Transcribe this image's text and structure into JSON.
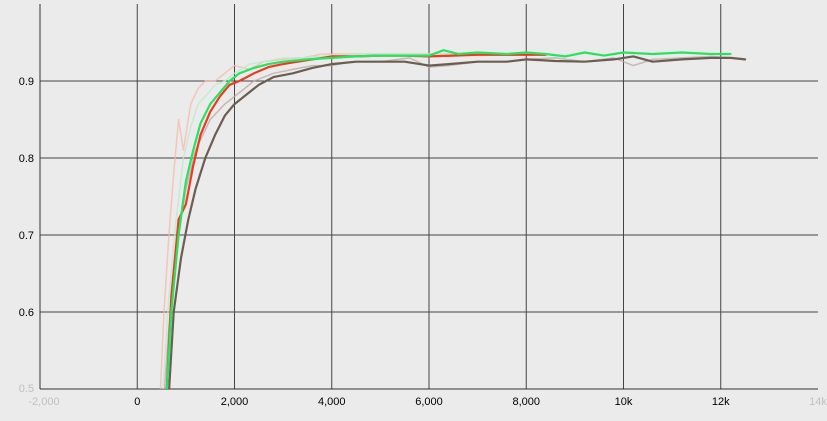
{
  "chart_data": {
    "type": "line",
    "title": "",
    "xlabel": "",
    "ylabel": "",
    "xlim": [
      -2000,
      14000
    ],
    "ylim": [
      0.5,
      1.0
    ],
    "grid": true,
    "x_ticks": [
      {
        "value": -2000,
        "label": "-2,000",
        "faded": true
      },
      {
        "value": 0,
        "label": "0",
        "faded": false
      },
      {
        "value": 2000,
        "label": "2,000",
        "faded": false
      },
      {
        "value": 4000,
        "label": "4,000",
        "faded": false
      },
      {
        "value": 6000,
        "label": "6,000",
        "faded": false
      },
      {
        "value": 8000,
        "label": "8,000",
        "faded": false
      },
      {
        "value": 10000,
        "label": "10k",
        "faded": false
      },
      {
        "value": 12000,
        "label": "12k",
        "faded": false
      },
      {
        "value": 14000,
        "label": "14k",
        "faded": true
      }
    ],
    "y_ticks": [
      {
        "value": 0.5,
        "label": "0.5",
        "faded": true
      },
      {
        "value": 0.6,
        "label": "0.6",
        "faded": false
      },
      {
        "value": 0.7,
        "label": "0.7",
        "faded": false
      },
      {
        "value": 0.8,
        "label": "0.8",
        "faded": false
      },
      {
        "value": 0.9,
        "label": "0.9",
        "faded": false
      }
    ],
    "series": [
      {
        "color": "#b5a9a3",
        "width": 1.5,
        "opacity": 0.75,
        "x": [
          550,
          650,
          800,
          1000,
          1200,
          1500,
          1800,
          2100,
          2400,
          2800,
          3200,
          3600,
          4000,
          4400,
          5000,
          5600,
          6000,
          6400,
          7000,
          7600,
          8000,
          8600,
          9200,
          9800,
          10200,
          10600,
          11200,
          11800,
          12200,
          12500
        ],
        "y": [
          0.49,
          0.58,
          0.68,
          0.76,
          0.81,
          0.85,
          0.87,
          0.885,
          0.9,
          0.91,
          0.915,
          0.92,
          0.92,
          0.925,
          0.925,
          0.93,
          0.918,
          0.92,
          0.925,
          0.925,
          0.928,
          0.93,
          0.925,
          0.93,
          0.92,
          0.928,
          0.93,
          0.932,
          0.93,
          0.928
        ]
      },
      {
        "color": "#6d5c53",
        "width": 2.2,
        "opacity": 1,
        "x": [
          650,
          750,
          900,
          1050,
          1200,
          1400,
          1600,
          1800,
          2000,
          2200,
          2500,
          2800,
          3200,
          3600,
          4000,
          4500,
          5000,
          5500,
          6000,
          6400,
          7000,
          7600,
          8000,
          8600,
          9200,
          9800,
          10200,
          10600,
          11200,
          11800,
          12200,
          12500
        ],
        "y": [
          0.495,
          0.6,
          0.67,
          0.72,
          0.76,
          0.8,
          0.83,
          0.855,
          0.87,
          0.88,
          0.895,
          0.905,
          0.91,
          0.917,
          0.922,
          0.925,
          0.925,
          0.925,
          0.92,
          0.922,
          0.925,
          0.925,
          0.928,
          0.926,
          0.925,
          0.928,
          0.932,
          0.925,
          0.928,
          0.93,
          0.93,
          0.928
        ]
      },
      {
        "color": "#f5b8ad",
        "width": 1.5,
        "opacity": 0.75,
        "x": [
          470,
          550,
          650,
          750,
          850,
          950,
          1100,
          1250,
          1400,
          1600,
          1800,
          2000,
          2300,
          2600,
          3000,
          3400,
          3800,
          4200,
          5000,
          6000,
          7000,
          8000,
          8400
        ],
        "y": [
          0.49,
          0.6,
          0.7,
          0.78,
          0.85,
          0.81,
          0.87,
          0.89,
          0.9,
          0.9,
          0.91,
          0.92,
          0.915,
          0.925,
          0.928,
          0.93,
          0.935,
          0.935,
          0.935,
          0.935,
          0.935,
          0.935,
          0.935
        ]
      },
      {
        "color": "#bfe8cc",
        "width": 1.5,
        "opacity": 0.8,
        "x": [
          520,
          650,
          800,
          950,
          1100,
          1250,
          1400,
          1600,
          1800,
          2000,
          2300,
          2600,
          3000,
          3400,
          3800,
          4200,
          5000,
          6000,
          7000,
          8000,
          8400
        ],
        "y": [
          0.49,
          0.62,
          0.72,
          0.8,
          0.84,
          0.87,
          0.88,
          0.895,
          0.9,
          0.91,
          0.922,
          0.925,
          0.93,
          0.93,
          0.932,
          0.935,
          0.935,
          0.935,
          0.935,
          0.935,
          0.935
        ]
      },
      {
        "color": "#ee3a22",
        "width": 2.2,
        "opacity": 1,
        "x": [
          600,
          700,
          850,
          1000,
          1150,
          1300,
          1500,
          1700,
          1900,
          2100,
          2400,
          2700,
          3000,
          3300,
          3600,
          4000,
          4500,
          5000,
          5500,
          6000,
          6500,
          7000,
          7500,
          8000,
          8400
        ],
        "y": [
          0.49,
          0.62,
          0.72,
          0.74,
          0.79,
          0.83,
          0.86,
          0.88,
          0.895,
          0.9,
          0.91,
          0.918,
          0.922,
          0.925,
          0.928,
          0.932,
          0.932,
          0.933,
          0.933,
          0.932,
          0.933,
          0.934,
          0.934,
          0.934,
          0.934
        ]
      },
      {
        "color": "#27e35f",
        "width": 2.2,
        "opacity": 1,
        "x": [
          600,
          700,
          850,
          1000,
          1150,
          1300,
          1500,
          1700,
          1900,
          2100,
          2400,
          2700,
          3000,
          3500,
          4000,
          4500,
          5000,
          5500,
          6000,
          6300,
          6600,
          7000,
          7600,
          8000,
          8400,
          8800,
          9200,
          9600,
          10000,
          10600,
          11200,
          11800,
          12200
        ],
        "y": [
          0.49,
          0.6,
          0.7,
          0.77,
          0.81,
          0.845,
          0.87,
          0.885,
          0.9,
          0.91,
          0.917,
          0.922,
          0.925,
          0.928,
          0.93,
          0.932,
          0.933,
          0.933,
          0.933,
          0.94,
          0.935,
          0.937,
          0.935,
          0.937,
          0.935,
          0.932,
          0.937,
          0.933,
          0.937,
          0.935,
          0.937,
          0.935,
          0.935
        ]
      }
    ]
  }
}
